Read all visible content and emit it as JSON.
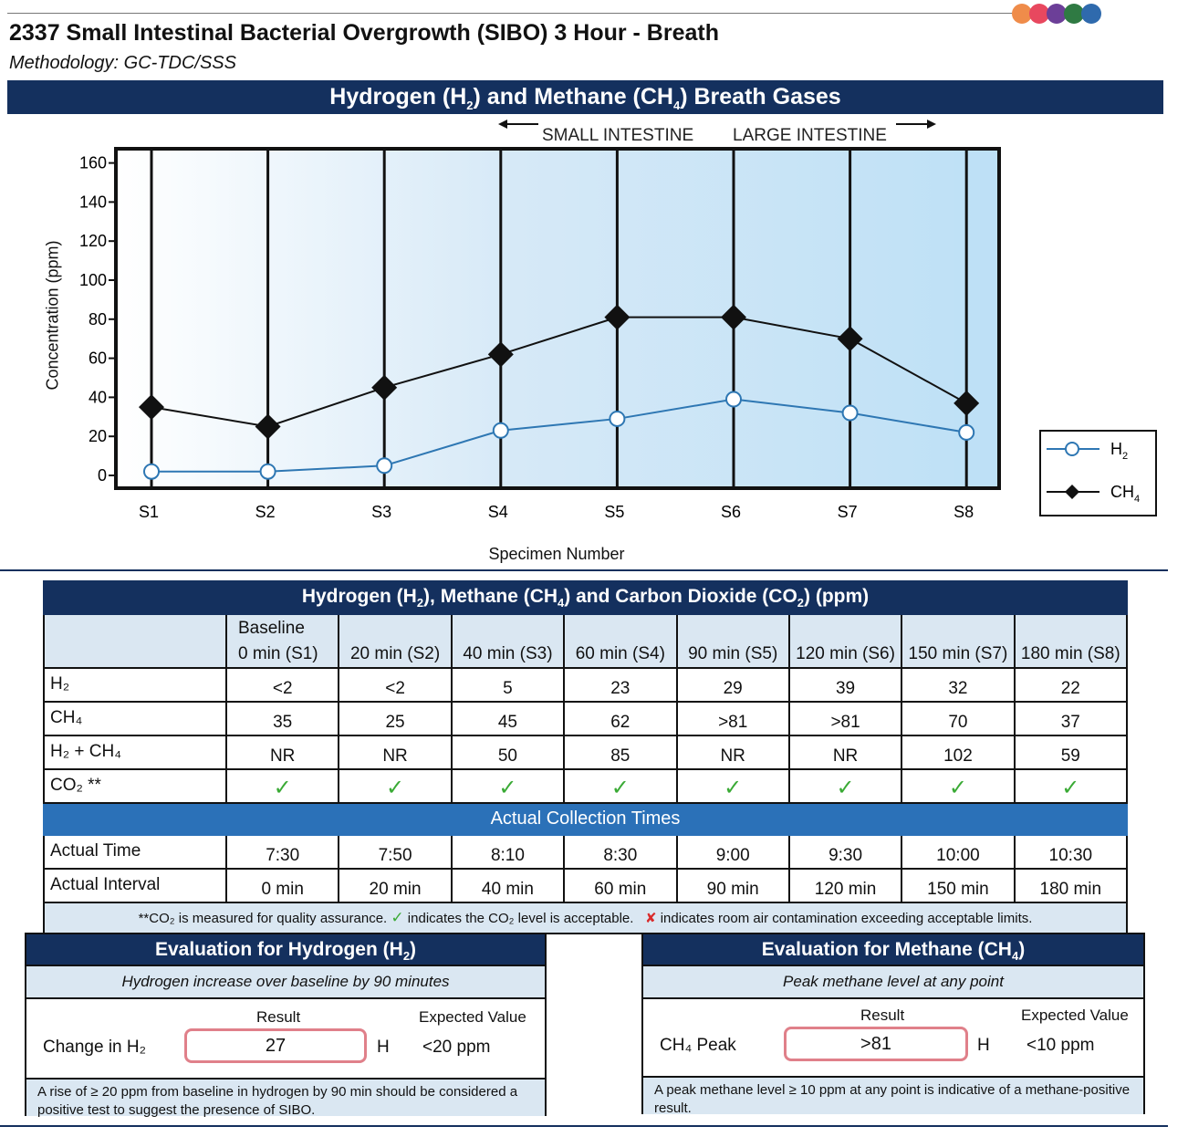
{
  "header": {
    "title": "2337 Small Intestinal Bacterial Overgrowth (SIBO) 3 Hour - Breath",
    "methodology": "Methodology: GC-TDC/SSS",
    "dot_colors": [
      "#ef8c4a",
      "#e8485f",
      "#6c3f98",
      "#2f7a43",
      "#2f6aad"
    ]
  },
  "chart_section": {
    "banner_pre": "Hydrogen (H",
    "banner_sub1": "2",
    "banner_mid": ") and Methane (CH",
    "banner_sub2": "4",
    "banner_post": ") Breath Gases",
    "region_left": "SMALL INTESTINE",
    "region_right": "LARGE INTESTINE"
  },
  "chart_data": {
    "type": "line",
    "categories": [
      "S1",
      "S2",
      "S3",
      "S4",
      "S5",
      "S6",
      "S7",
      "S8"
    ],
    "series": [
      {
        "name": "H2",
        "values": [
          2,
          2,
          5,
          23,
          29,
          39,
          32,
          22
        ],
        "color": "#2e77b3",
        "marker": "open-circle"
      },
      {
        "name": "CH4",
        "values": [
          35,
          25,
          45,
          62,
          81,
          81,
          70,
          37
        ],
        "color": "#111111",
        "marker": "diamond"
      }
    ],
    "xlabel": "Specimen Number",
    "ylabel": "Concentration (ppm)",
    "yticks": [
      0,
      20,
      40,
      60,
      80,
      100,
      120,
      140,
      160
    ],
    "ylim": [
      0,
      165
    ],
    "grid": "vertical",
    "legend_position": "right",
    "legend": [
      {
        "pre": "H",
        "sub": "2"
      },
      {
        "pre": "CH",
        "sub": "4"
      }
    ]
  },
  "table": {
    "title_pre": "Hydrogen (H",
    "title_sub1": "2",
    "title_mid": "), Methane (CH",
    "title_sub2": "4",
    "title_mid2": ") and Carbon Dioxide (CO",
    "title_sub3": "2",
    "title_post": ") (ppm)",
    "columns": [
      {
        "line1": "Baseline",
        "line2": "0 min (S1)"
      },
      {
        "line1": "",
        "line2": "20 min (S2)"
      },
      {
        "line1": "",
        "line2": "40 min (S3)"
      },
      {
        "line1": "",
        "line2": "60 min (S4)"
      },
      {
        "line1": "",
        "line2": "90 min (S5)"
      },
      {
        "line1": "",
        "line2": "120 min (S6)"
      },
      {
        "line1": "",
        "line2": "150 min (S7)"
      },
      {
        "line1": "",
        "line2": "180 min (S8)"
      }
    ],
    "rows": [
      {
        "label": "H₂",
        "values": [
          "<2",
          "<2",
          "5",
          "23",
          "29",
          "39",
          "32",
          "22"
        ]
      },
      {
        "label": "CH₄",
        "values": [
          "35",
          "25",
          "45",
          "62",
          ">81",
          ">81",
          "70",
          "37"
        ]
      },
      {
        "label": "H₂ + CH₄",
        "values": [
          "NR",
          "NR",
          "50",
          "85",
          "NR",
          "NR",
          "102",
          "59"
        ]
      }
    ],
    "co2_label": "CO₂ **",
    "check_glyph": "✓",
    "collection_title": "Actual Collection Times",
    "actual_time_label": "Actual Time",
    "actual_times": [
      "7:30",
      "7:50",
      "8:10",
      "8:30",
      "9:00",
      "9:30",
      "10:00",
      "10:30"
    ],
    "actual_interval_label": "Actual Interval",
    "actual_intervals": [
      "0 min",
      "20 min",
      "40 min",
      "60 min",
      "90 min",
      "120 min",
      "150 min",
      "180 min"
    ],
    "footnote_a": "**CO₂ is measured for quality assurance.",
    "footnote_check": "✓",
    "footnote_b": "indicates the CO₂ level is acceptable.",
    "footnote_x": "✘",
    "footnote_c": "indicates room air contamination exceeding acceptable limits."
  },
  "eval_h2": {
    "title_pre": "Evaluation for Hydrogen (H",
    "title_sub": "2",
    "title_post": ")",
    "subtitle": "Hydrogen increase over baseline by 90 minutes",
    "result_header": "Result",
    "expected_header": "Expected Value",
    "label": "Change in H₂",
    "result": "27",
    "flag": "H",
    "expected": "<20 ppm",
    "note": "A rise of ≥ 20 ppm from baseline in hydrogen by 90 min should be considered a positive test to suggest the presence of SIBO."
  },
  "eval_ch4": {
    "title_pre": "Evaluation for Methane (CH",
    "title_sub": "4",
    "title_post": ")",
    "subtitle": "Peak methane level at any point",
    "result_header": "Result",
    "expected_header": "Expected Value",
    "label": "CH₄ Peak",
    "result": ">81",
    "flag": "H",
    "expected": "<10 ppm",
    "note": "A peak methane level ≥ 10 ppm at any point is indicative of a methane-positive result."
  }
}
